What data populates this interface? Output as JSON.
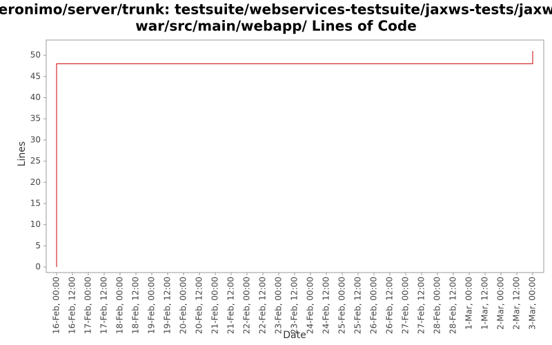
{
  "chart_data": {
    "type": "line",
    "title": [
      "/geronimo/server/trunk: testsuite/webservices-testsuite/jaxws-tests/jaxws-",
      "war/src/main/webapp/ Lines of Code"
    ],
    "x_label": "Date",
    "y_label": "Lines",
    "xticks": [
      "16-Feb, 00:00",
      "16-Feb, 12:00",
      "17-Feb, 00:00",
      "17-Feb, 12:00",
      "18-Feb, 00:00",
      "18-Feb, 12:00",
      "19-Feb, 00:00",
      "19-Feb, 12:00",
      "20-Feb, 00:00",
      "20-Feb, 12:00",
      "21-Feb, 00:00",
      "21-Feb, 12:00",
      "22-Feb, 00:00",
      "22-Feb, 12:00",
      "23-Feb, 00:00",
      "23-Feb, 12:00",
      "24-Feb, 00:00",
      "24-Feb, 12:00",
      "25-Feb, 00:00",
      "25-Feb, 12:00",
      "26-Feb, 00:00",
      "26-Feb, 12:00",
      "27-Feb, 00:00",
      "27-Feb, 12:00",
      "28-Feb, 00:00",
      "28-Feb, 12:00",
      "1-Mar, 00:00",
      "1-Mar, 12:00",
      "2-Mar, 00:00",
      "2-Mar, 12:00",
      "3-Mar, 00:00"
    ],
    "x": [
      "16-Feb, 00:00",
      "16-Feb, 00:00",
      "3-Mar, 00:00",
      "3-Mar, 00:00"
    ],
    "series": [
      {
        "color": "#cc0000",
        "values": [
          0,
          48,
          48,
          51
        ]
      }
    ],
    "ylim": [
      -1.3,
      53.6
    ],
    "yticks": [
      0,
      5,
      10,
      15,
      20,
      25,
      30,
      35,
      40,
      45,
      50
    ],
    "grid": false
  }
}
